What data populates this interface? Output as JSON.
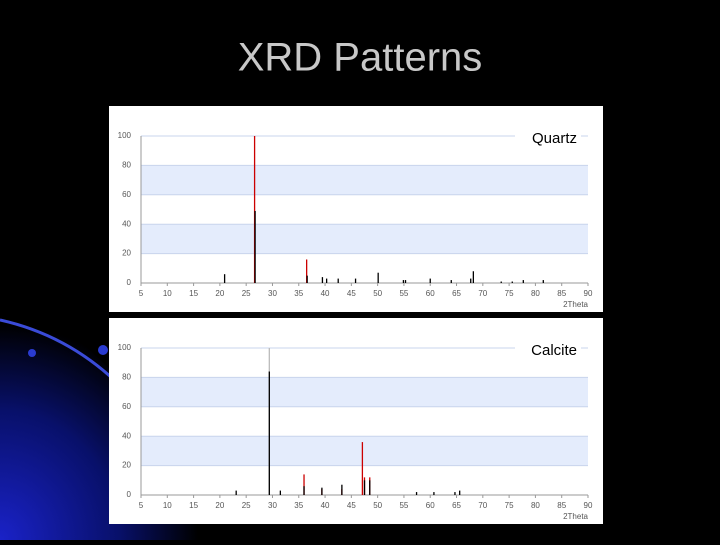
{
  "title": "XRD Patterns",
  "chart_data": [
    {
      "type": "stem",
      "label": "Quartz",
      "xlabel": "2Theta",
      "xlim": [
        5,
        90
      ],
      "xticks": [
        5,
        10,
        15,
        20,
        25,
        30,
        35,
        40,
        45,
        50,
        55,
        60,
        65,
        70,
        75,
        80,
        85,
        90
      ],
      "ylim": [
        0,
        100
      ],
      "yticks": [
        0,
        20,
        40,
        60,
        80,
        100
      ],
      "bands": true,
      "series": [
        {
          "color": "#cc0000",
          "x": [
            26.6,
            36.5
          ],
          "values": [
            100,
            16
          ]
        },
        {
          "color": "#000000",
          "x": [
            20.9,
            26.7,
            36.6,
            39.5,
            40.3,
            42.5,
            45.8,
            50.1,
            54.9,
            55.3,
            60.0,
            64.0,
            67.7,
            68.2,
            73.5,
            75.6,
            77.7,
            81.5
          ],
          "values": [
            6,
            49,
            5,
            4,
            3,
            3,
            3,
            7,
            2,
            2,
            3,
            2,
            3,
            8,
            1,
            1,
            2,
            2
          ]
        }
      ]
    },
    {
      "type": "stem",
      "label": "Calcite",
      "xlabel": "2Theta",
      "xlim": [
        5,
        90
      ],
      "xticks": [
        5,
        10,
        15,
        20,
        25,
        30,
        35,
        40,
        45,
        50,
        55,
        60,
        65,
        70,
        75,
        80,
        85,
        90
      ],
      "ylim": [
        0,
        100
      ],
      "yticks": [
        0,
        20,
        40,
        60,
        80,
        100
      ],
      "bands": true,
      "series": [
        {
          "color": "#bbbbbb",
          "x": [
            29.4
          ],
          "values": [
            100
          ]
        },
        {
          "color": "#cc0000",
          "x": [
            36.0,
            39.4,
            43.2,
            47.1,
            47.5,
            48.5
          ],
          "values": [
            14,
            4,
            4,
            36,
            12,
            12
          ]
        },
        {
          "color": "#000000",
          "x": [
            23.1,
            29.4,
            31.5,
            36.0,
            39.4,
            43.2,
            47.5,
            48.5,
            57.4,
            60.7,
            64.7,
            65.6
          ],
          "values": [
            3,
            84,
            3,
            6,
            5,
            7,
            10,
            10,
            2,
            2,
            2,
            3
          ]
        }
      ]
    }
  ]
}
